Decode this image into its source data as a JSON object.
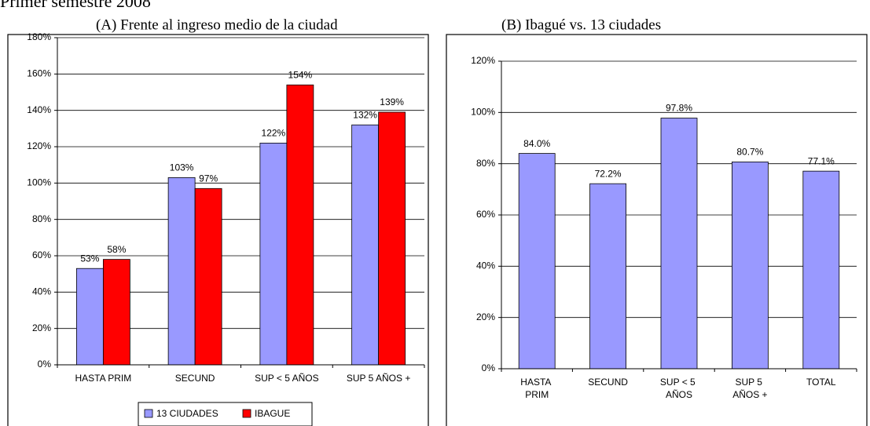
{
  "heading": "Primer semestre 2008",
  "chart_data": [
    {
      "type": "bar",
      "title": "(A) Frente al ingreso medio de la ciudad",
      "categories": [
        "HASTA PRIM",
        "SECUND",
        "SUP < 5 AÑOS",
        "SUP 5 AÑOS +"
      ],
      "series": [
        {
          "name": "13 CIUDADES",
          "color": "#9999ff",
          "values": [
            53,
            103,
            122,
            132
          ],
          "value_labels": [
            "53%",
            "103%",
            "122%",
            "132%"
          ]
        },
        {
          "name": "IBAGUE",
          "color": "#ff0000",
          "values": [
            58,
            97,
            154,
            139
          ],
          "value_labels": [
            "58%",
            "97%",
            "154%",
            "139%"
          ]
        }
      ],
      "ylim": [
        0,
        180
      ],
      "yticks": [
        {
          "value": 0,
          "label": "0%"
        },
        {
          "value": 20,
          "label": "20%"
        },
        {
          "value": 40,
          "label": "40%"
        },
        {
          "value": 60,
          "label": "60%"
        },
        {
          "value": 80,
          "label": "80%"
        },
        {
          "value": 100,
          "label": "100%"
        },
        {
          "value": 120,
          "label": "120%"
        },
        {
          "value": 140,
          "label": "140%"
        },
        {
          "value": 160,
          "label": "160%"
        },
        {
          "value": 180,
          "label": "180%"
        }
      ],
      "grid": true,
      "legend": "bottom"
    },
    {
      "type": "bar",
      "title": "(B) Ibagué vs. 13 ciudades",
      "categories": [
        "HASTA PRIM",
        "SECUND",
        "SUP < 5 AÑOS",
        "SUP 5 AÑOS +",
        "TOTAL"
      ],
      "values": [
        84.0,
        72.2,
        97.8,
        80.7,
        77.1
      ],
      "value_labels": [
        "84.0%",
        "72.2%",
        "97.8%",
        "80.7%",
        "77.1%"
      ],
      "color": "#9999ff",
      "ylim": [
        0,
        120
      ],
      "yticks": [
        {
          "value": 0,
          "label": "0%"
        },
        {
          "value": 20,
          "label": "20%"
        },
        {
          "value": 40,
          "label": "40%"
        },
        {
          "value": 60,
          "label": "60%"
        },
        {
          "value": 80,
          "label": "80%"
        },
        {
          "value": 100,
          "label": "100%"
        },
        {
          "value": 120,
          "label": "120%"
        }
      ],
      "grid": true
    }
  ]
}
